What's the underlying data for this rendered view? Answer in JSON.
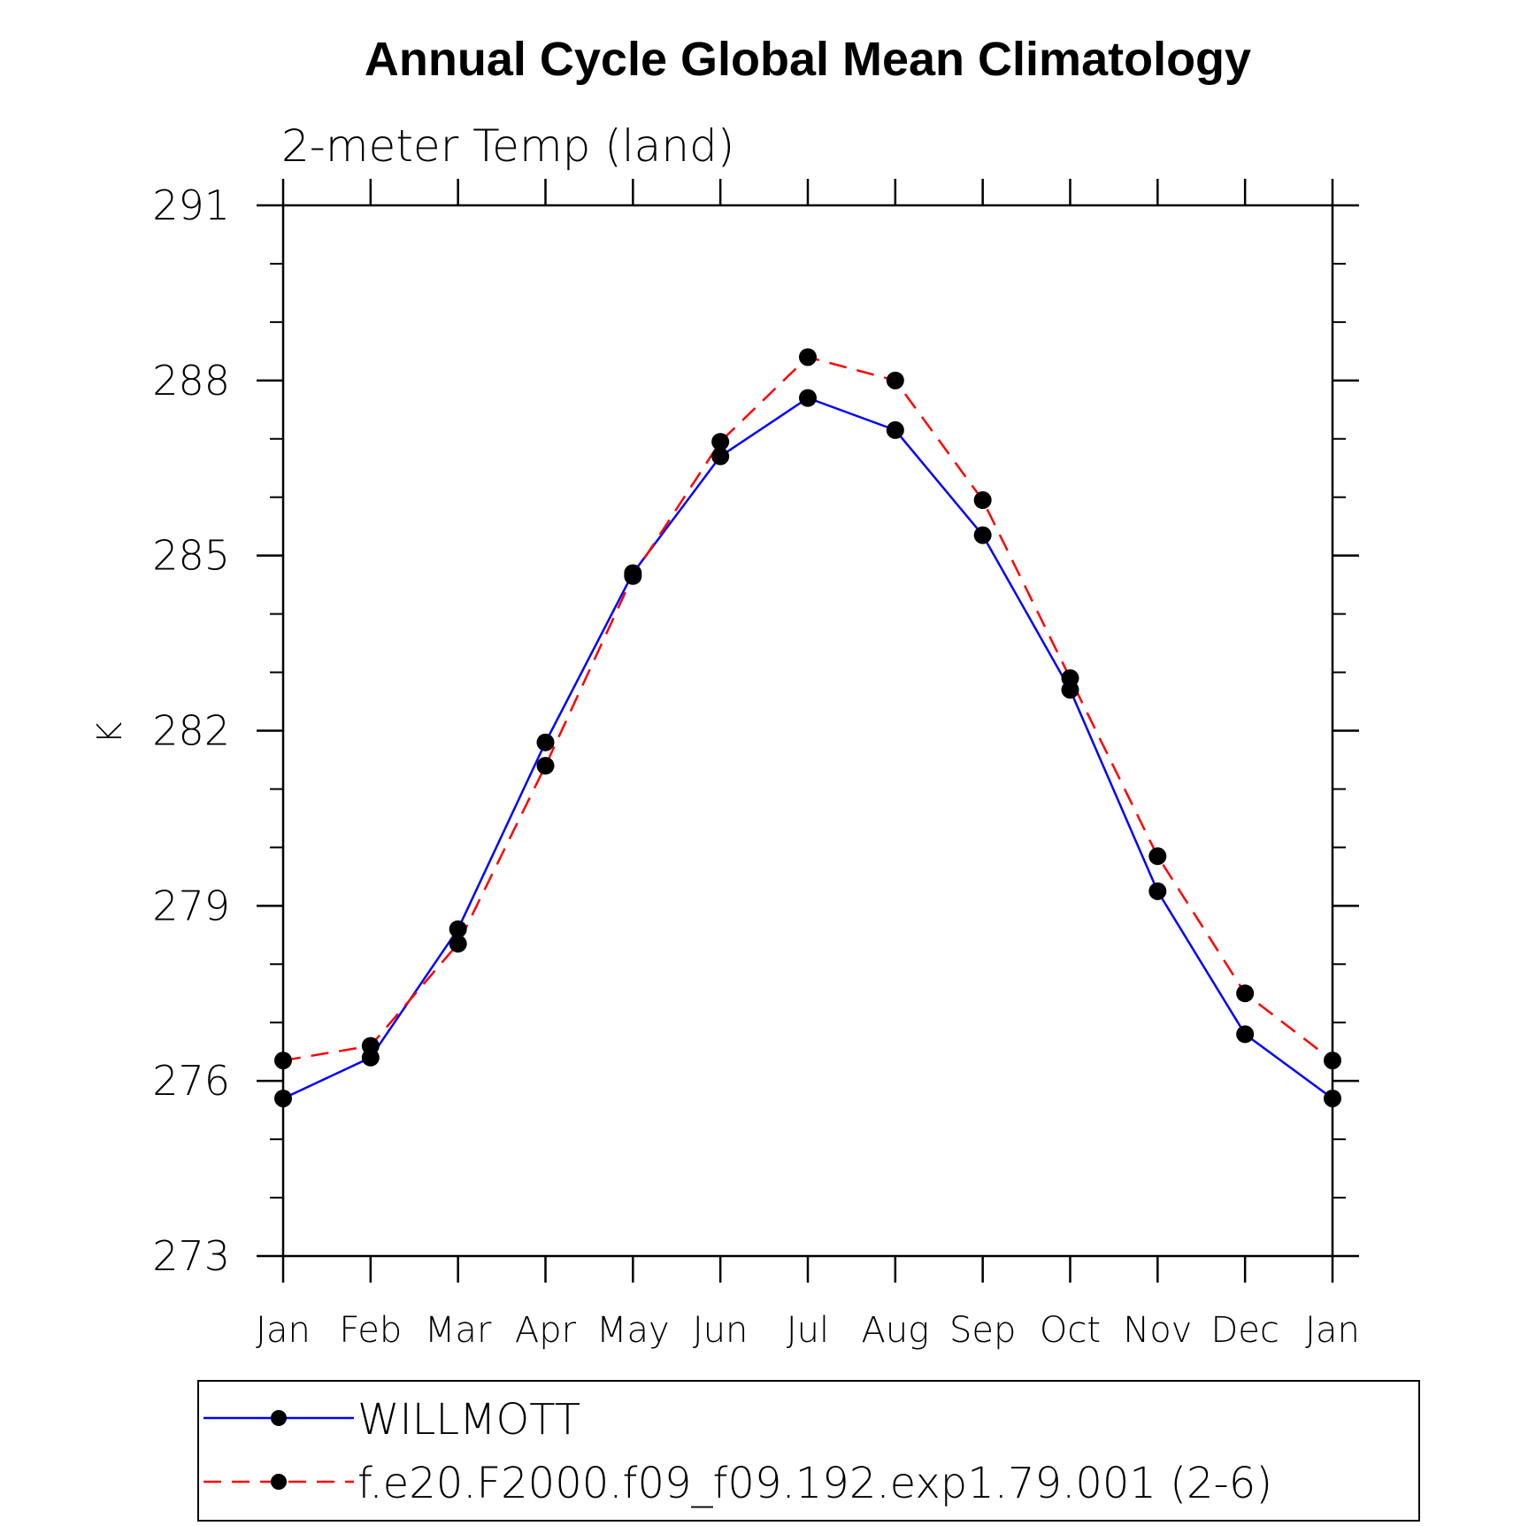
{
  "chart_data": {
    "type": "line",
    "title": "Annual Cycle Global Mean Climatology",
    "subtitle": "2-meter Temp (land)",
    "xlabel": "",
    "ylabel": "K",
    "categories": [
      "Jan",
      "Feb",
      "Mar",
      "Apr",
      "May",
      "Jun",
      "Jul",
      "Aug",
      "Sep",
      "Oct",
      "Nov",
      "Dec",
      "Jan"
    ],
    "ylim": [
      273,
      291
    ],
    "yticks": [
      273,
      276,
      279,
      282,
      285,
      288,
      291
    ],
    "yminor_step": 1,
    "series": [
      {
        "name": "WILLMOTT",
        "color": "#0000ff",
        "dash": "solid",
        "values": [
          275.7,
          276.4,
          278.6,
          281.8,
          284.7,
          286.7,
          287.7,
          287.15,
          285.35,
          282.7,
          279.25,
          276.8,
          275.7
        ]
      },
      {
        "name": "f.e20.F2000.f09_f09.192.exp1.79.001 (2-6)",
        "color": "#ff0000",
        "dash": "dashed",
        "values": [
          276.35,
          276.6,
          278.35,
          281.4,
          284.65,
          286.95,
          288.4,
          288.0,
          285.95,
          282.9,
          279.85,
          277.5,
          276.35
        ]
      }
    ],
    "legend": {
      "position": "bottom"
    }
  }
}
